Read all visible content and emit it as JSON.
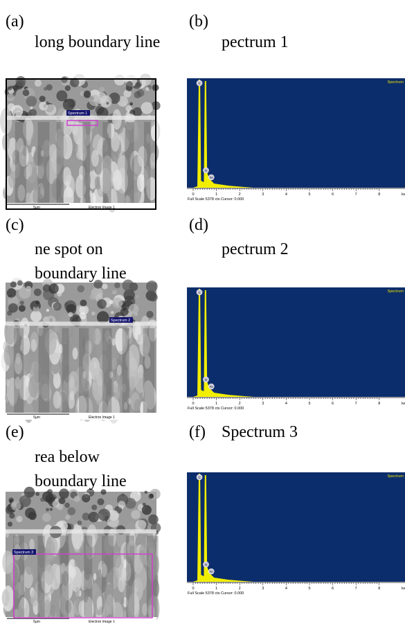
{
  "panels": [
    {
      "label": "(a)",
      "caption": "long boundary line",
      "image": {
        "spot_label": "Spectrum 1",
        "scale": "5µm",
        "image_label": "Electron Image 1"
      }
    },
    {
      "label": "(b)",
      "caption": "pectrum 1",
      "spectrum": {
        "title": "Spectrum",
        "footer": "Full Scale 5378 cts Cursor: 0.000",
        "x_ticks": [
          "0",
          "1",
          "2",
          "3",
          "4",
          "5",
          "6",
          "7",
          "8"
        ],
        "unit": "ke",
        "peaks": [
          "C",
          "O",
          "Fe"
        ]
      }
    },
    {
      "label": "(c)",
      "caption": "ne spot on boundary line",
      "image": {
        "spot_label": "Spectrum 2",
        "scale": "5µm",
        "image_label": "Electron Image 1"
      }
    },
    {
      "label": "(d)",
      "caption": "pectrum 2",
      "spectrum": {
        "title": "Spectrum",
        "footer": "Full Scale 5378 cts Cursor: 0.000",
        "x_ticks": [
          "0",
          "1",
          "2",
          "3",
          "4",
          "5",
          "6",
          "7",
          "8"
        ],
        "unit": "ke",
        "peaks": [
          "C",
          "O",
          "Fe"
        ]
      }
    },
    {
      "label": "(e)",
      "caption": "rea below boundary line",
      "image": {
        "spot_label": "Spectrum 3",
        "scale": "5µm",
        "image_label": "Electron Image 1"
      }
    },
    {
      "label": "(f)",
      "caption": "Spectrum 3",
      "spectrum": {
        "title": "Spectrum",
        "footer": "Full Scale 5378 cts Cursor: 0.000",
        "x_ticks": [
          "0",
          "1",
          "2",
          "3",
          "4",
          "5",
          "6",
          "7",
          "8"
        ],
        "unit": "ke",
        "peaks": [
          "C",
          "O",
          "Fe"
        ]
      }
    }
  ]
}
